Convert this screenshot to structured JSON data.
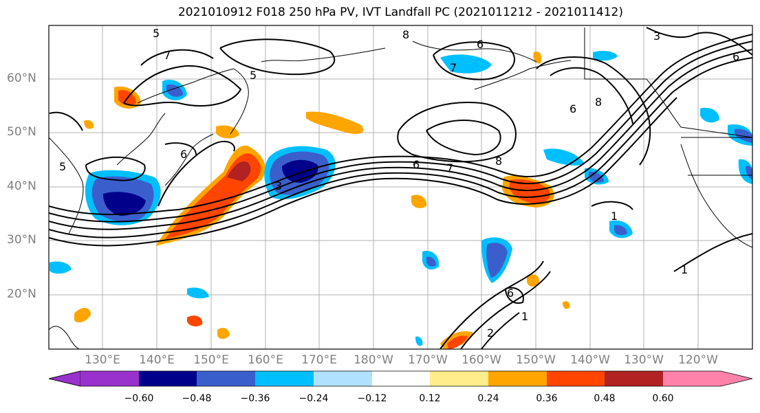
{
  "title": "2021010912 F018 250 hPa PV, IVT Landfall PC (2021011212 - 2021011412)",
  "lat_labels": [
    "60°N",
    "50°N",
    "40°N",
    "30°N",
    "20°N"
  ],
  "lon_labels": [
    "130°E",
    "140°E",
    "150°E",
    "160°E",
    "170°E",
    "180°W",
    "170°W",
    "160°W",
    "150°W",
    "140°W",
    "130°W",
    "120°W"
  ],
  "colorbar": {
    "tick_labels": [
      "−0.60",
      "−0.48",
      "−0.36",
      "−0.24",
      "−0.12",
      "0.12",
      "0.24",
      "0.36",
      "0.48",
      "0.60"
    ],
    "colors": [
      "#9932cc",
      "#00008b",
      "#3a5fcd",
      "#00bfff",
      "#b0e2ff",
      "#ffffff",
      "#ffec8b",
      "#ffa500",
      "#ff4500",
      "#b22222",
      "#ff82ab"
    ]
  },
  "contour_labels": [
    "5",
    "7",
    "5",
    "6",
    "8",
    "6",
    "7",
    "8",
    "6",
    "7",
    "8",
    "6",
    "5",
    "6",
    "3",
    "2",
    "1",
    "1",
    "1",
    "3",
    "6"
  ]
}
